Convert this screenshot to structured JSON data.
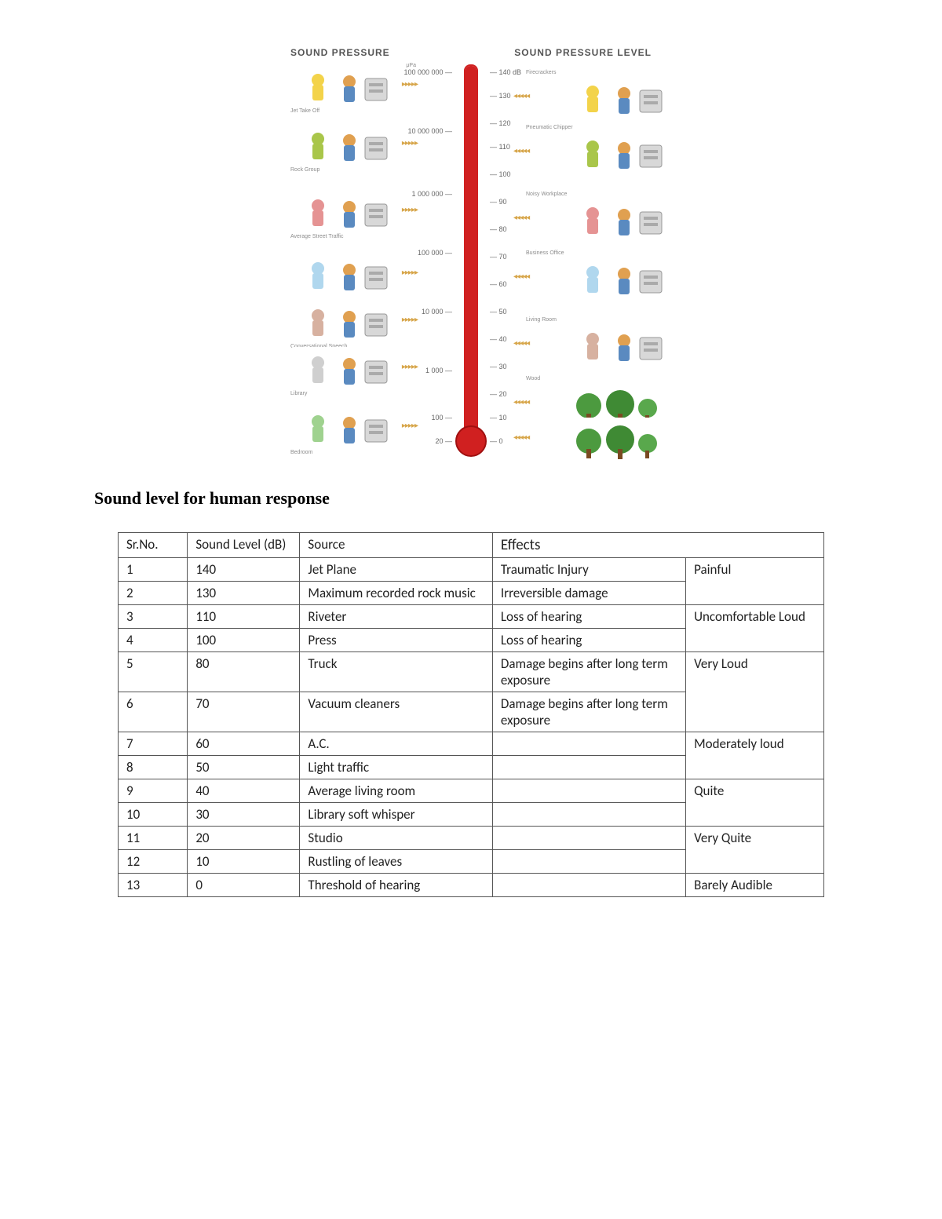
{
  "infographic": {
    "header_left": "SOUND PRESSURE",
    "header_right": "SOUND PRESSURE LEVEL",
    "unit_left_hint": "μPa",
    "top_db": "140 dB",
    "thermo_color": "#d02020",
    "left_pressure_ticks": [
      {
        "top_pct": 2,
        "label": "100 000 000"
      },
      {
        "top_pct": 17,
        "label": "10 000 000"
      },
      {
        "top_pct": 33,
        "label": "1 000 000"
      },
      {
        "top_pct": 48,
        "label": "100 000"
      },
      {
        "top_pct": 63,
        "label": "10 000"
      },
      {
        "top_pct": 78,
        "label": "1 000"
      },
      {
        "top_pct": 90,
        "label": "100"
      },
      {
        "top_pct": 96,
        "label": "20"
      }
    ],
    "right_db_ticks": [
      {
        "top_pct": 2,
        "label": "140 dB"
      },
      {
        "top_pct": 8,
        "label": "130"
      },
      {
        "top_pct": 15,
        "label": "120"
      },
      {
        "top_pct": 21,
        "label": "110"
      },
      {
        "top_pct": 28,
        "label": "100"
      },
      {
        "top_pct": 35,
        "label": "90"
      },
      {
        "top_pct": 42,
        "label": "80"
      },
      {
        "top_pct": 49,
        "label": "70"
      },
      {
        "top_pct": 56,
        "label": "60"
      },
      {
        "top_pct": 63,
        "label": "50"
      },
      {
        "top_pct": 70,
        "label": "40"
      },
      {
        "top_pct": 77,
        "label": "30"
      },
      {
        "top_pct": 84,
        "label": "20"
      },
      {
        "top_pct": 90,
        "label": "10"
      },
      {
        "top_pct": 96,
        "label": "0"
      }
    ],
    "left_scenes": [
      {
        "top_pct": 0,
        "caption": "Jet Take Off"
      },
      {
        "top_pct": 15,
        "caption": "Rock Group"
      },
      {
        "top_pct": 32,
        "caption": "Average Street Traffic"
      },
      {
        "top_pct": 48,
        "caption": ""
      },
      {
        "top_pct": 60,
        "caption": "Conversational Speech"
      },
      {
        "top_pct": 72,
        "caption": "Library"
      },
      {
        "top_pct": 87,
        "caption": "Bedroom"
      }
    ],
    "right_scenes": [
      {
        "top_pct": 3,
        "caption": "Firecrackers"
      },
      {
        "top_pct": 17,
        "caption": "Pneumatic Chipper"
      },
      {
        "top_pct": 34,
        "caption": "Noisy Workplace"
      },
      {
        "top_pct": 49,
        "caption": "Business Office"
      },
      {
        "top_pct": 66,
        "caption": "Living Room"
      },
      {
        "top_pct": 81,
        "caption": "Wood"
      },
      {
        "top_pct": 90,
        "caption": ""
      }
    ]
  },
  "section_title": "Sound level for human response",
  "table": {
    "headers": {
      "sr": "Sr.No.",
      "level": "Sound Level (dB)",
      "source": "Source",
      "effects": "Effects"
    },
    "rows": [
      {
        "sr": "1",
        "level": "140",
        "source": "Jet Plane",
        "effect": "Traumatic Injury"
      },
      {
        "sr": "2",
        "level": "130",
        "source": "Maximum recorded rock music",
        "effect": "Irreversible damage"
      },
      {
        "sr": "3",
        "level": "110",
        "source": "Riveter",
        "effect": "Loss of hearing"
      },
      {
        "sr": "4",
        "level": "100",
        "source": "Press",
        "effect": "Loss of hearing"
      },
      {
        "sr": "5",
        "level": "80",
        "source": "Truck",
        "effect": "Damage begins after long term exposure"
      },
      {
        "sr": "6",
        "level": "70",
        "source": "Vacuum cleaners",
        "effect": "Damage begins after long term exposure"
      },
      {
        "sr": "7",
        "level": "60",
        "source": "A.C.",
        "effect": ""
      },
      {
        "sr": "8",
        "level": "50",
        "source": "Light traffic",
        "effect": ""
      },
      {
        "sr": "9",
        "level": "40",
        "source": "Average living room",
        "effect": ""
      },
      {
        "sr": "10",
        "level": "30",
        "source": "Library soft whisper",
        "effect": ""
      },
      {
        "sr": "11",
        "level": "20",
        "source": "Studio",
        "effect": ""
      },
      {
        "sr": "12",
        "level": "10",
        "source": "Rustling of leaves",
        "effect": ""
      },
      {
        "sr": "13",
        "level": "0",
        "source": "Threshold of hearing",
        "effect": ""
      }
    ],
    "categories": [
      {
        "label": "Painful",
        "rowspan": 2
      },
      {
        "label": "Uncomfortable Loud",
        "rowspan": 2
      },
      {
        "label": "Very Loud",
        "rowspan": 2
      },
      {
        "label": "Moderately loud",
        "rowspan": 2
      },
      {
        "label": "Quite",
        "rowspan": 2
      },
      {
        "label": "Very Quite",
        "rowspan": 2
      },
      {
        "label": "Barely Audible",
        "rowspan": 1
      }
    ]
  }
}
